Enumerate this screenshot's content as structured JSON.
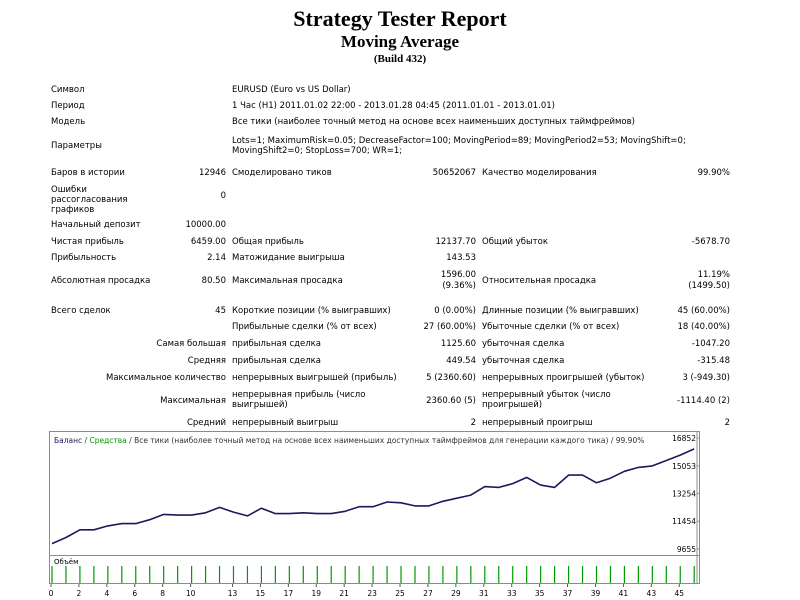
{
  "header": {
    "title": "Strategy Tester Report",
    "expert": "Moving Average",
    "build": "(Build 432)"
  },
  "info": {
    "symbol_label": "Символ",
    "symbol_value": "EURUSD (Euro vs US Dollar)",
    "period_label": "Период",
    "period_value": "1 Час (H1) 2011.01.02 22:00 - 2013.01.28 04:45 (2011.01.01 - 2013.01.01)",
    "model_label": "Модель",
    "model_value": "Все тики (наиболее точный метод на основе всех наименьших доступных таймфреймов)",
    "params_label": "Параметры",
    "params_value": "Lots=1; MaximumRisk=0.05; DecreaseFactor=100; MovingPeriod=89; MovingPeriod2=53; MovingShift=0; MovingShift2=0; StopLoss=700; WR=1;"
  },
  "stats": {
    "bars_label": "Баров в истории",
    "bars_value": "12946",
    "ticks_label": "Смоделировано тиков",
    "ticks_value": "50652067",
    "quality_label": "Качество моделирования",
    "quality_value": "99.90%",
    "mismatch_label": "Ошибки рассогласования графиков",
    "mismatch_value": "0",
    "deposit_label": "Начальный депозит",
    "deposit_value": "10000.00",
    "net_label": "Чистая прибыль",
    "net_value": "6459.00",
    "gross_profit_label": "Общая прибыль",
    "gross_profit_value": "12137.70",
    "gross_loss_label": "Общий убыток",
    "gross_loss_value": "-5678.70",
    "pf_label": "Прибыльность",
    "pf_value": "2.14",
    "payoff_label": "Матожидание выигрыша",
    "payoff_value": "143.53",
    "abs_dd_label": "Абсолютная просадка",
    "abs_dd_value": "80.50",
    "max_dd_label": "Максимальная просадка",
    "max_dd_value1": "1596.00",
    "max_dd_value2": "(9.36%)",
    "rel_dd_label": "Относительная просадка",
    "rel_dd_value1": "11.19%",
    "rel_dd_value2": "(1499.50)",
    "trades_label": "Всего сделок",
    "trades_value": "45",
    "short_label": "Короткие позиции (% выигравших)",
    "short_value": "0 (0.00%)",
    "long_label": "Длинные позиции (% выигравших)",
    "long_value": "45 (60.00%)",
    "win_label": "Прибыльные сделки (% от всех)",
    "win_value": "27 (60.00%)",
    "loss_label": "Убыточные сделки (% от всех)",
    "loss_value": "18 (40.00%)",
    "largest_label": "Самая большая",
    "largest_win_label": "прибыльная сделка",
    "largest_win_value": "1125.60",
    "largest_loss_label": "убыточная сделка",
    "largest_loss_value": "-1047.20",
    "average_label": "Средняя",
    "avg_win_label": "прибыльная сделка",
    "avg_win_value": "449.54",
    "avg_loss_label": "убыточная сделка",
    "avg_loss_value": "-315.48",
    "maxcount_label": "Максимальное количество",
    "cons_wins_label": "непрерывных выигрышей (прибыль)",
    "cons_wins_value": "5 (2360.60)",
    "cons_losses_label": "непрерывных проигрышей (убыток)",
    "cons_losses_value": "3 (-949.30)",
    "maximal_label": "Максимальная",
    "cons_profit_label": "непрерывная прибыль (число выигрышей)",
    "cons_profit_value": "2360.60 (5)",
    "cons_loss_label": "непрерывный убыток (число проигрышей)",
    "cons_loss_value": "-1114.40 (2)",
    "avgcons_label": "Средний",
    "avg_cons_wins_label": "непрерывный выигрыш",
    "avg_cons_wins_value": "2",
    "avg_cons_losses_label": "непрерывный проигрыш",
    "avg_cons_losses_value": "2"
  },
  "chart_data": {
    "type": "line",
    "legend_balance": "Баланс",
    "legend_sep1": " / ",
    "legend_equity": "Средства",
    "legend_rest": " / Все тики (наиболее точный метод на основе всех наименьших доступных таймфреймов для генерации каждого тика) / 99.90%",
    "balance_color": "#1a1a5e",
    "equity_color": "#009900",
    "y_ticks": [
      "16852",
      "15053",
      "13254",
      "11454",
      "9655"
    ],
    "y_tick_values": [
      16852,
      15053,
      13254,
      11454,
      9655
    ],
    "ylim": [
      9260,
      17250
    ],
    "xlim": [
      0,
      46.2
    ],
    "x_ticks": [
      "0",
      "2",
      "4",
      "6",
      "8",
      "10",
      "13",
      "15",
      "17",
      "19",
      "21",
      "23",
      "25",
      "27",
      "29",
      "31",
      "33",
      "35",
      "37",
      "39",
      "41",
      "43",
      "45"
    ],
    "x_tick_values": [
      0,
      2,
      4,
      6,
      8,
      10,
      13,
      15,
      17,
      19,
      21,
      23,
      25,
      27,
      29,
      31,
      33,
      35,
      37,
      39,
      41,
      43,
      45
    ],
    "x": [
      0,
      1,
      2,
      3,
      4,
      5,
      6,
      7,
      8,
      9,
      10,
      11,
      12,
      13,
      14,
      15,
      16,
      17,
      18,
      19,
      20,
      21,
      22,
      23,
      24,
      25,
      26,
      27,
      28,
      29,
      30,
      31,
      32,
      33,
      34,
      35,
      36,
      37,
      38,
      39,
      40,
      41,
      42,
      43,
      44,
      45,
      46
    ],
    "balance": [
      10000,
      10400,
      10900,
      10900,
      11150,
      11300,
      11300,
      11550,
      11900,
      11850,
      11850,
      12000,
      12350,
      12050,
      11800,
      12300,
      11950,
      11950,
      12000,
      11950,
      11950,
      12100,
      12400,
      12400,
      12700,
      12650,
      12450,
      12450,
      12750,
      12950,
      13150,
      13700,
      13650,
      13900,
      14300,
      13800,
      13650,
      14450,
      14450,
      13950,
      14250,
      14700,
      14950,
      15050,
      15400,
      15750,
      16150
    ],
    "volume_label": "Объём"
  }
}
